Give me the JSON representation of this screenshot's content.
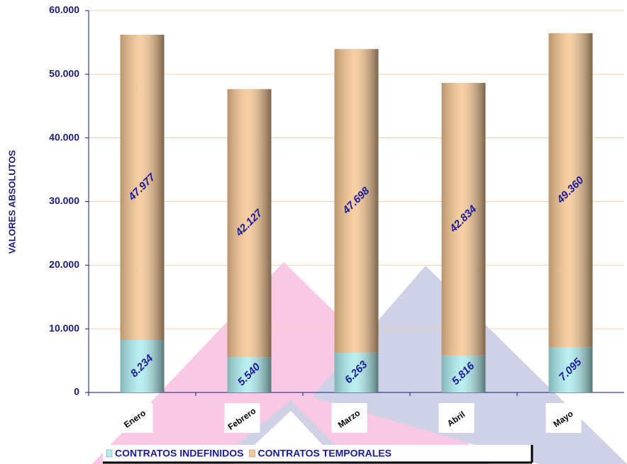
{
  "chart_data": {
    "type": "stacked-bar",
    "y_label": "VALORES ABSOLUTOS",
    "categories": [
      "Enero",
      "Febrero",
      "Marzo",
      "Abril",
      "Mayo"
    ],
    "series": [
      {
        "name": "CONTRATOS INDEFINIDOS",
        "color": "#aeeef0",
        "values": [
          8234,
          5540,
          6263,
          5816,
          7095
        ],
        "value_labels": [
          "8.234",
          "5.540",
          "6.263",
          "5.816",
          "7.095"
        ]
      },
      {
        "name": "CONTRATOS TEMPORALES",
        "color": "#f7c793",
        "values": [
          47977,
          42127,
          47698,
          42834,
          49360
        ],
        "value_labels": [
          "47.977",
          "42.127",
          "47.698",
          "42.834",
          "49.360"
        ]
      }
    ],
    "ylim": [
      0,
      60000
    ],
    "yticks": [
      0,
      {
        "value": 10000,
        "label": "10.000"
      },
      {
        "value": 20000,
        "label": "20.000"
      },
      {
        "value": 30000,
        "label": "30.000"
      },
      {
        "value": 40000,
        "label": "40.000"
      },
      {
        "value": 50000,
        "label": "50.000"
      },
      {
        "value": 60000,
        "label": "60.000"
      }
    ],
    "grid": true
  }
}
